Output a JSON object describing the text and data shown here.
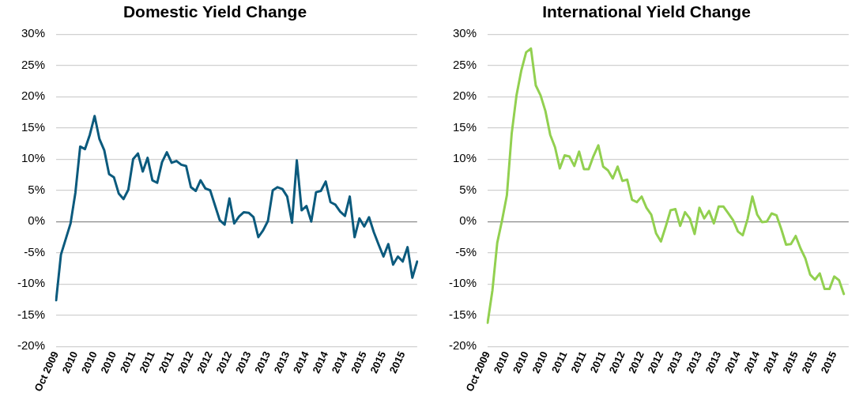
{
  "chart_data": [
    {
      "type": "line",
      "title": "Domestic Yield Change",
      "marker": "none",
      "grid": "y",
      "ylim": [
        -20,
        30
      ],
      "yticks": [
        {
          "value": -20,
          "label": "-20%"
        },
        {
          "value": -15,
          "label": "-15%"
        },
        {
          "value": -10,
          "label": "-10%"
        },
        {
          "value": -5,
          "label": "-5%"
        },
        {
          "value": 0,
          "label": "0%"
        },
        {
          "value": 5,
          "label": "5%"
        },
        {
          "value": 10,
          "label": "10%"
        },
        {
          "value": 15,
          "label": "15%"
        },
        {
          "value": 20,
          "label": "20%"
        },
        {
          "value": 25,
          "label": "25%"
        },
        {
          "value": 30,
          "label": "30%"
        }
      ],
      "categories": [
        "Oct 2009",
        null,
        null,
        null,
        "2010",
        null,
        null,
        null,
        "2010",
        null,
        null,
        null,
        "2010",
        null,
        null,
        null,
        "2011",
        null,
        null,
        null,
        "2011",
        null,
        null,
        null,
        "2011",
        null,
        null,
        null,
        "2012",
        null,
        null,
        null,
        "2012",
        null,
        null,
        null,
        "2012",
        null,
        null,
        null,
        "2013",
        null,
        null,
        null,
        "2013",
        null,
        null,
        null,
        "2013",
        null,
        null,
        null,
        "2014",
        null,
        null,
        null,
        "2014",
        null,
        null,
        null,
        "2014",
        null,
        null,
        null,
        "2015",
        null,
        null,
        null,
        "2015",
        null,
        null,
        null,
        "2015",
        null,
        null,
        null
      ],
      "series": [
        {
          "color": "#0b5a7d",
          "values": [
            -12.6,
            -5.3,
            -2.8,
            -0.3,
            4.6,
            12.0,
            11.6,
            13.9,
            16.9,
            13.2,
            11.4,
            7.6,
            7.1,
            4.5,
            3.6,
            5.1,
            10.0,
            10.9,
            8.0,
            10.2,
            6.6,
            6.2,
            9.5,
            11.1,
            9.4,
            9.7,
            9.1,
            8.9,
            5.5,
            4.9,
            6.6,
            5.3,
            5.0,
            2.6,
            0.2,
            -0.5,
            3.7,
            -0.3,
            0.8,
            1.5,
            1.4,
            0.7,
            -2.5,
            -1.4,
            0.1,
            5.0,
            5.5,
            5.2,
            4.0,
            -0.2,
            9.8,
            1.8,
            2.5,
            0.0,
            4.7,
            4.9,
            6.4,
            3.1,
            2.7,
            1.6,
            0.9,
            4.0,
            -2.5,
            0.5,
            -0.8,
            0.7,
            -1.7,
            -3.7,
            -5.6,
            -3.6,
            -6.9,
            -5.6,
            -6.4,
            -4.1,
            -9.0,
            -6.4
          ]
        }
      ]
    },
    {
      "type": "line",
      "title": "International Yield Change",
      "marker": "none",
      "grid": "y",
      "ylim": [
        -20,
        30
      ],
      "yticks": [
        {
          "value": -20,
          "label": "-20%"
        },
        {
          "value": -15,
          "label": "-15%"
        },
        {
          "value": -10,
          "label": "-10%"
        },
        {
          "value": -5,
          "label": "-5%"
        },
        {
          "value": 0,
          "label": "0%"
        },
        {
          "value": 5,
          "label": "5%"
        },
        {
          "value": 10,
          "label": "10%"
        },
        {
          "value": 15,
          "label": "15%"
        },
        {
          "value": 20,
          "label": "20%"
        },
        {
          "value": 25,
          "label": "25%"
        },
        {
          "value": 30,
          "label": "30%"
        }
      ],
      "categories": [
        "Oct 2009",
        null,
        null,
        null,
        "2010",
        null,
        null,
        null,
        "2010",
        null,
        null,
        null,
        "2010",
        null,
        null,
        null,
        "2011",
        null,
        null,
        null,
        "2011",
        null,
        null,
        null,
        "2011",
        null,
        null,
        null,
        "2012",
        null,
        null,
        null,
        "2012",
        null,
        null,
        null,
        "2012",
        null,
        null,
        null,
        "2013",
        null,
        null,
        null,
        "2013",
        null,
        null,
        null,
        "2013",
        null,
        null,
        null,
        "2014",
        null,
        null,
        null,
        "2014",
        null,
        null,
        null,
        "2014",
        null,
        null,
        null,
        "2015",
        null,
        null,
        null,
        "2015",
        null,
        null,
        null,
        "2015",
        null,
        null,
        null
      ],
      "series": [
        {
          "color": "#92d050",
          "values": [
            -16.2,
            -11.0,
            -3.4,
            0.2,
            4.2,
            14.1,
            20.2,
            24.2,
            27.1,
            27.7,
            21.8,
            20.2,
            17.7,
            13.9,
            11.9,
            8.5,
            10.6,
            10.4,
            8.9,
            11.2,
            8.4,
            8.4,
            10.5,
            12.2,
            8.8,
            8.2,
            6.9,
            8.8,
            6.5,
            6.7,
            3.5,
            3.1,
            4.0,
            2.2,
            1.1,
            -1.9,
            -3.2,
            -0.8,
            1.8,
            2.0,
            -0.7,
            1.5,
            0.5,
            -2.0,
            2.2,
            0.5,
            1.7,
            -0.3,
            2.4,
            2.4,
            1.3,
            0.2,
            -1.6,
            -2.2,
            0.4,
            4.0,
            1.1,
            -0.1,
            0.0,
            1.3,
            1.0,
            -1.2,
            -3.7,
            -3.6,
            -2.3,
            -4.3,
            -5.9,
            -8.5,
            -9.3,
            -8.3,
            -10.8,
            -10.8,
            -8.8,
            -9.4,
            -11.6,
            null
          ]
        }
      ]
    }
  ]
}
